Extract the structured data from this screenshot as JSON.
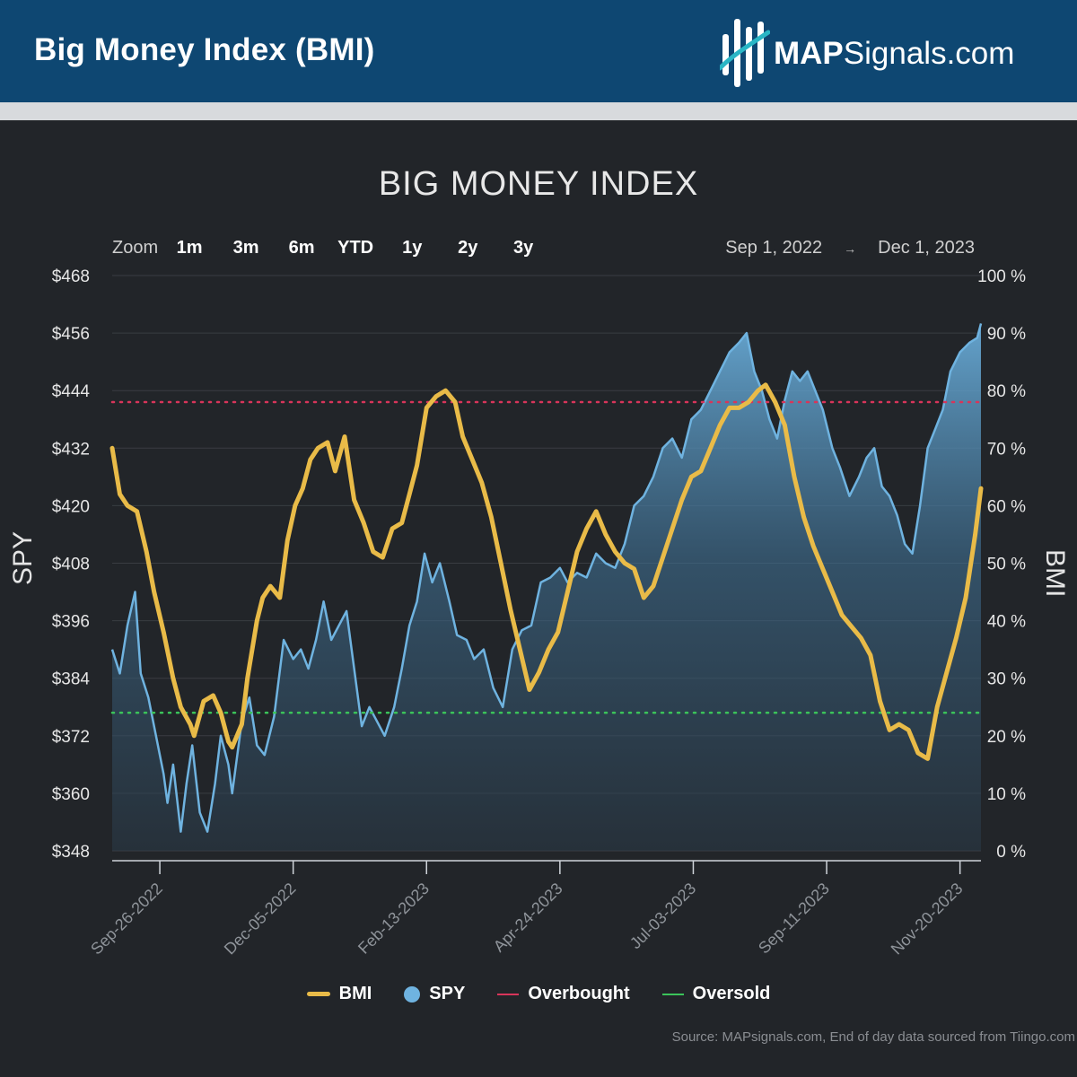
{
  "header": {
    "title": "Big Money Index (BMI)",
    "brand_bold": "MAP",
    "brand_rest": "Signals.com",
    "bg_color": "#0e4772"
  },
  "toolbar": {
    "zoom_label": "Zoom",
    "zoom_buttons": [
      "1m",
      "3m",
      "6m",
      "YTD",
      "1y",
      "2y",
      "3y"
    ],
    "range_start": "Sep 1, 2022",
    "range_end": "Dec 1, 2023"
  },
  "footer": {
    "source": "Source: MAPsignals.com, End of day data sourced from Tiingo.com"
  },
  "chart_data": {
    "type": "line",
    "title": "BIG MONEY INDEX",
    "x_type": "date",
    "x_range": [
      "2022-09-01",
      "2023-12-01"
    ],
    "x_ticks": [
      "Sep-26-2022",
      "Dec-05-2022",
      "Feb-13-2023",
      "Apr-24-2023",
      "Jul-03-2023",
      "Sep-11-2023",
      "Nov-20-2023"
    ],
    "y_left": {
      "label": "SPY",
      "range": [
        348,
        468
      ],
      "ticks": [
        348,
        360,
        372,
        384,
        396,
        408,
        420,
        432,
        444,
        456,
        468
      ],
      "tick_labels": [
        "$348",
        "$360",
        "$372",
        "$384",
        "$396",
        "$408",
        "$420",
        "$432",
        "$444",
        "$456",
        "$468"
      ]
    },
    "y_right": {
      "label": "BMI",
      "range": [
        0,
        100
      ],
      "ticks": [
        0,
        10,
        20,
        30,
        40,
        50,
        60,
        70,
        80,
        90,
        100
      ],
      "tick_labels": [
        "0 %",
        "10 %",
        "20 %",
        "30 %",
        "40 %",
        "50 %",
        "60 %",
        "70 %",
        "80 %",
        "90 %",
        "100 %"
      ]
    },
    "grid": true,
    "legend_position": "bottom",
    "thresholds": [
      {
        "name": "Overbought",
        "value": 78,
        "axis": "right",
        "color": "#d8355a"
      },
      {
        "name": "Oversold",
        "value": 24,
        "axis": "right",
        "color": "#3bc45a"
      }
    ],
    "series": [
      {
        "name": "BMI",
        "axis": "right",
        "color": "#e9bb48",
        "points": [
          [
            "2022-09-01",
            70
          ],
          [
            "2022-09-05",
            62
          ],
          [
            "2022-09-09",
            60
          ],
          [
            "2022-09-14",
            59
          ],
          [
            "2022-09-19",
            52
          ],
          [
            "2022-09-23",
            45
          ],
          [
            "2022-09-28",
            38
          ],
          [
            "2022-10-03",
            30
          ],
          [
            "2022-10-07",
            25
          ],
          [
            "2022-10-12",
            22
          ],
          [
            "2022-10-14",
            20
          ],
          [
            "2022-10-19",
            26
          ],
          [
            "2022-10-24",
            27
          ],
          [
            "2022-10-28",
            24
          ],
          [
            "2022-11-01",
            19
          ],
          [
            "2022-11-03",
            18
          ],
          [
            "2022-11-08",
            22
          ],
          [
            "2022-11-11",
            30
          ],
          [
            "2022-11-16",
            40
          ],
          [
            "2022-11-19",
            44
          ],
          [
            "2022-11-23",
            46
          ],
          [
            "2022-11-28",
            44
          ],
          [
            "2022-12-02",
            54
          ],
          [
            "2022-12-06",
            60
          ],
          [
            "2022-12-10",
            63
          ],
          [
            "2022-12-14",
            68
          ],
          [
            "2022-12-18",
            70
          ],
          [
            "2022-12-23",
            71
          ],
          [
            "2022-12-27",
            66
          ],
          [
            "2023-01-01",
            72
          ],
          [
            "2023-01-06",
            61
          ],
          [
            "2023-01-11",
            57
          ],
          [
            "2023-01-16",
            52
          ],
          [
            "2023-01-21",
            51
          ],
          [
            "2023-01-26",
            56
          ],
          [
            "2023-01-31",
            57
          ],
          [
            "2023-02-04",
            62
          ],
          [
            "2023-02-08",
            67
          ],
          [
            "2023-02-13",
            77
          ],
          [
            "2023-02-18",
            79
          ],
          [
            "2023-02-23",
            80
          ],
          [
            "2023-02-28",
            78
          ],
          [
            "2023-03-04",
            72
          ],
          [
            "2023-03-09",
            68
          ],
          [
            "2023-03-14",
            64
          ],
          [
            "2023-03-19",
            58
          ],
          [
            "2023-03-24",
            50
          ],
          [
            "2023-03-29",
            42
          ],
          [
            "2023-04-03",
            35
          ],
          [
            "2023-04-08",
            28
          ],
          [
            "2023-04-13",
            31
          ],
          [
            "2023-04-18",
            35
          ],
          [
            "2023-04-23",
            38
          ],
          [
            "2023-04-28",
            45
          ],
          [
            "2023-05-03",
            52
          ],
          [
            "2023-05-08",
            56
          ],
          [
            "2023-05-13",
            59
          ],
          [
            "2023-05-18",
            55
          ],
          [
            "2023-05-23",
            52
          ],
          [
            "2023-05-28",
            50
          ],
          [
            "2023-06-02",
            49
          ],
          [
            "2023-06-07",
            44
          ],
          [
            "2023-06-12",
            46
          ],
          [
            "2023-06-17",
            51
          ],
          [
            "2023-06-22",
            56
          ],
          [
            "2023-06-27",
            61
          ],
          [
            "2023-07-02",
            65
          ],
          [
            "2023-07-07",
            66
          ],
          [
            "2023-07-12",
            70
          ],
          [
            "2023-07-17",
            74
          ],
          [
            "2023-07-22",
            77
          ],
          [
            "2023-07-27",
            77
          ],
          [
            "2023-08-01",
            78
          ],
          [
            "2023-08-06",
            80
          ],
          [
            "2023-08-10",
            81
          ],
          [
            "2023-08-15",
            78
          ],
          [
            "2023-08-20",
            74
          ],
          [
            "2023-08-25",
            65
          ],
          [
            "2023-08-30",
            58
          ],
          [
            "2023-09-04",
            53
          ],
          [
            "2023-09-09",
            49
          ],
          [
            "2023-09-14",
            45
          ],
          [
            "2023-09-19",
            41
          ],
          [
            "2023-09-24",
            39
          ],
          [
            "2023-09-29",
            37
          ],
          [
            "2023-10-04",
            34
          ],
          [
            "2023-10-09",
            26
          ],
          [
            "2023-10-14",
            21
          ],
          [
            "2023-10-19",
            22
          ],
          [
            "2023-10-24",
            21
          ],
          [
            "2023-10-29",
            17
          ],
          [
            "2023-11-03",
            16
          ],
          [
            "2023-11-08",
            25
          ],
          [
            "2023-11-13",
            31
          ],
          [
            "2023-11-18",
            37
          ],
          [
            "2023-11-23",
            44
          ],
          [
            "2023-11-28",
            55
          ],
          [
            "2023-12-01",
            63
          ]
        ]
      },
      {
        "name": "SPY",
        "axis": "left",
        "color": "#6fb3e0",
        "points": [
          [
            "2022-09-01",
            390
          ],
          [
            "2022-09-05",
            385
          ],
          [
            "2022-09-09",
            395
          ],
          [
            "2022-09-13",
            402
          ],
          [
            "2022-09-16",
            385
          ],
          [
            "2022-09-20",
            380
          ],
          [
            "2022-09-24",
            372
          ],
          [
            "2022-09-28",
            364
          ],
          [
            "2022-09-30",
            358
          ],
          [
            "2022-10-03",
            366
          ],
          [
            "2022-10-07",
            352
          ],
          [
            "2022-10-10",
            362
          ],
          [
            "2022-10-13",
            370
          ],
          [
            "2022-10-17",
            356
          ],
          [
            "2022-10-21",
            352
          ],
          [
            "2022-10-25",
            362
          ],
          [
            "2022-10-28",
            372
          ],
          [
            "2022-11-01",
            366
          ],
          [
            "2022-11-03",
            360
          ],
          [
            "2022-11-08",
            375
          ],
          [
            "2022-11-12",
            380
          ],
          [
            "2022-11-16",
            370
          ],
          [
            "2022-11-20",
            368
          ],
          [
            "2022-11-25",
            376
          ],
          [
            "2022-11-30",
            392
          ],
          [
            "2022-12-05",
            388
          ],
          [
            "2022-12-09",
            390
          ],
          [
            "2022-12-13",
            386
          ],
          [
            "2022-12-17",
            392
          ],
          [
            "2022-12-21",
            400
          ],
          [
            "2022-12-25",
            392
          ],
          [
            "2022-12-29",
            395
          ],
          [
            "2023-01-02",
            398
          ],
          [
            "2023-01-06",
            386
          ],
          [
            "2023-01-10",
            374
          ],
          [
            "2023-01-14",
            378
          ],
          [
            "2023-01-18",
            375
          ],
          [
            "2023-01-22",
            372
          ],
          [
            "2023-01-27",
            378
          ],
          [
            "2023-01-31",
            386
          ],
          [
            "2023-02-04",
            395
          ],
          [
            "2023-02-08",
            400
          ],
          [
            "2023-02-12",
            410
          ],
          [
            "2023-02-16",
            404
          ],
          [
            "2023-02-20",
            408
          ],
          [
            "2023-02-25",
            400
          ],
          [
            "2023-03-01",
            393
          ],
          [
            "2023-03-06",
            392
          ],
          [
            "2023-03-10",
            388
          ],
          [
            "2023-03-15",
            390
          ],
          [
            "2023-03-20",
            382
          ],
          [
            "2023-03-25",
            378
          ],
          [
            "2023-03-30",
            390
          ],
          [
            "2023-04-04",
            394
          ],
          [
            "2023-04-09",
            395
          ],
          [
            "2023-04-14",
            404
          ],
          [
            "2023-04-19",
            405
          ],
          [
            "2023-04-24",
            407
          ],
          [
            "2023-04-28",
            404
          ],
          [
            "2023-05-03",
            406
          ],
          [
            "2023-05-08",
            405
          ],
          [
            "2023-05-13",
            410
          ],
          [
            "2023-05-18",
            408
          ],
          [
            "2023-05-23",
            407
          ],
          [
            "2023-05-28",
            412
          ],
          [
            "2023-06-02",
            420
          ],
          [
            "2023-06-07",
            422
          ],
          [
            "2023-06-12",
            426
          ],
          [
            "2023-06-17",
            432
          ],
          [
            "2023-06-22",
            434
          ],
          [
            "2023-06-27",
            430
          ],
          [
            "2023-07-02",
            438
          ],
          [
            "2023-07-07",
            440
          ],
          [
            "2023-07-12",
            444
          ],
          [
            "2023-07-17",
            448
          ],
          [
            "2023-07-22",
            452
          ],
          [
            "2023-07-27",
            454
          ],
          [
            "2023-07-31",
            456
          ],
          [
            "2023-08-04",
            448
          ],
          [
            "2023-08-08",
            444
          ],
          [
            "2023-08-12",
            438
          ],
          [
            "2023-08-16",
            434
          ],
          [
            "2023-08-20",
            442
          ],
          [
            "2023-08-24",
            448
          ],
          [
            "2023-08-28",
            446
          ],
          [
            "2023-09-01",
            448
          ],
          [
            "2023-09-05",
            444
          ],
          [
            "2023-09-09",
            440
          ],
          [
            "2023-09-14",
            432
          ],
          [
            "2023-09-18",
            428
          ],
          [
            "2023-09-23",
            422
          ],
          [
            "2023-09-28",
            426
          ],
          [
            "2023-10-02",
            430
          ],
          [
            "2023-10-06",
            432
          ],
          [
            "2023-10-10",
            424
          ],
          [
            "2023-10-14",
            422
          ],
          [
            "2023-10-18",
            418
          ],
          [
            "2023-10-22",
            412
          ],
          [
            "2023-10-26",
            410
          ],
          [
            "2023-10-30",
            420
          ],
          [
            "2023-11-03",
            432
          ],
          [
            "2023-11-07",
            436
          ],
          [
            "2023-11-11",
            440
          ],
          [
            "2023-11-15",
            448
          ],
          [
            "2023-11-20",
            452
          ],
          [
            "2023-11-25",
            454
          ],
          [
            "2023-11-29",
            455
          ],
          [
            "2023-12-01",
            458
          ]
        ]
      }
    ]
  }
}
